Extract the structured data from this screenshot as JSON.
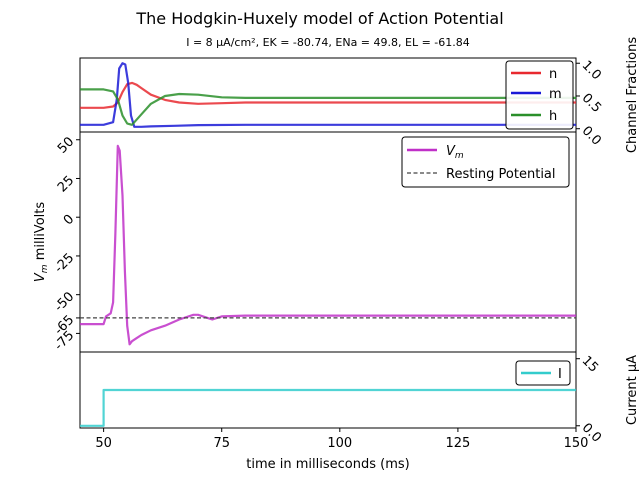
{
  "title": "The Hodgkin-Huxely model of Action Potential",
  "subtitle": "I = 8 μA/cm², EK = -80.74, ENa = 49.8, EL = -61.84",
  "xlabel": "time in milliseconds (ms)",
  "colors": {
    "n": "#e8292f",
    "m": "#1a1ad6",
    "h": "#2a8f2a",
    "vm": "#c030c8",
    "rest": "#444444",
    "current": "#33cccc"
  },
  "chart_data": [
    {
      "type": "line",
      "panel": "gating",
      "ylabel": "Channel Fractions",
      "xlim": [
        45,
        150
      ],
      "ylim": [
        -0.05,
        1.08
      ],
      "yticks": [
        "0.0",
        "0.5",
        "1.0"
      ],
      "legend": "top-right",
      "series": [
        {
          "name": "n",
          "x": [
            45,
            50,
            52,
            53,
            54,
            55,
            56,
            57,
            58,
            60,
            63,
            66,
            70,
            75,
            80,
            90,
            100,
            120,
            150
          ],
          "y": [
            0.32,
            0.32,
            0.34,
            0.4,
            0.56,
            0.68,
            0.7,
            0.67,
            0.62,
            0.52,
            0.44,
            0.4,
            0.38,
            0.39,
            0.4,
            0.4,
            0.4,
            0.4,
            0.4
          ]
        },
        {
          "name": "m",
          "x": [
            45,
            50,
            52,
            52.8,
            53.3,
            54,
            54.6,
            55.2,
            55.8,
            56.5,
            58,
            60,
            65,
            70,
            80,
            100,
            150
          ],
          "y": [
            0.06,
            0.06,
            0.1,
            0.45,
            0.92,
            1.0,
            0.98,
            0.7,
            0.2,
            0.03,
            0.03,
            0.035,
            0.045,
            0.055,
            0.06,
            0.06,
            0.06
          ]
        },
        {
          "name": "h",
          "x": [
            45,
            50,
            52,
            53,
            54,
            55,
            56,
            58,
            60,
            63,
            66,
            70,
            75,
            80,
            90,
            100,
            150
          ],
          "y": [
            0.6,
            0.6,
            0.57,
            0.45,
            0.2,
            0.08,
            0.06,
            0.22,
            0.38,
            0.5,
            0.53,
            0.52,
            0.48,
            0.47,
            0.47,
            0.47,
            0.47
          ]
        }
      ]
    },
    {
      "type": "line",
      "panel": "voltage",
      "ylabel": "V_m milliVolts",
      "xlim": [
        45,
        150
      ],
      "ylim": [
        -87,
        55
      ],
      "yticks": [
        "50",
        "25",
        "0",
        "-25",
        "-50",
        "-65",
        "-75"
      ],
      "legend": "top-right",
      "series": [
        {
          "name": "V_m",
          "x": [
            45,
            50,
            50.5,
            51.5,
            52,
            52.5,
            53,
            53.4,
            54,
            54.5,
            55,
            55.5,
            56,
            57,
            58,
            60,
            63,
            66,
            69,
            70,
            72,
            73,
            75,
            80,
            90,
            100,
            150
          ],
          "y": [
            -69,
            -69,
            -64,
            -62,
            -55,
            -10,
            46,
            43,
            14,
            -35,
            -70,
            -82,
            -80,
            -78,
            -76,
            -73,
            -70,
            -66,
            -63,
            -63,
            -65,
            -66,
            -64,
            -63.5,
            -63.5,
            -63.5,
            -63.5
          ]
        },
        {
          "name": "Resting Potential",
          "x": [
            45,
            150
          ],
          "y": [
            -65,
            -65
          ]
        }
      ]
    },
    {
      "type": "line",
      "panel": "current",
      "ylabel": "Current μA",
      "xlim": [
        45,
        150
      ],
      "ylim": [
        -0.5,
        16.5
      ],
      "yticks": [
        "0.0",
        "15"
      ],
      "legend": "top-right",
      "series": [
        {
          "name": "I",
          "x": [
            45,
            50,
            50,
            150
          ],
          "y": [
            0,
            0,
            8,
            8
          ]
        }
      ]
    }
  ],
  "xticks": [
    "50",
    "75",
    "100",
    "125",
    "150"
  ]
}
